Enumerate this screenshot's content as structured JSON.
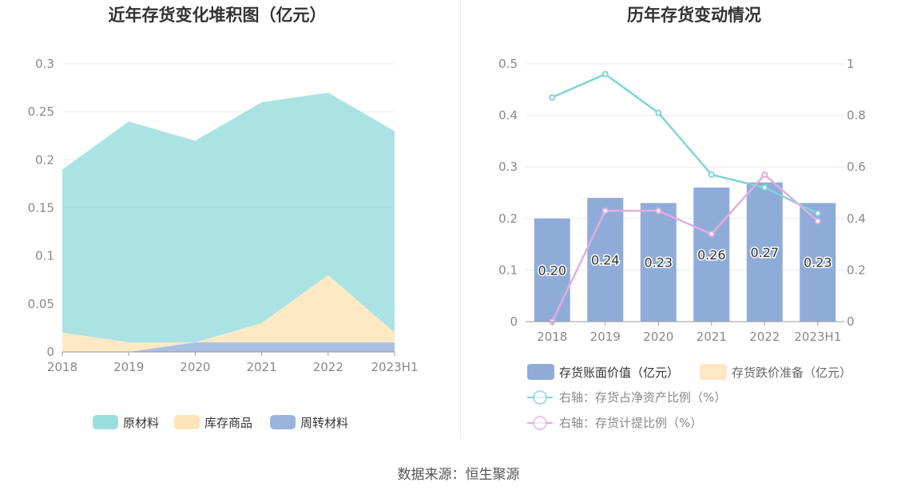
{
  "colors": {
    "raw": "#8fd9db",
    "goods": "#fde2b0",
    "turnover": "#8facd9",
    "bar": "#8facd9",
    "reserve": "#fde7c4",
    "line_net": "#7fd3d6",
    "line_prov": "#e2aee0",
    "grid": "#e6e9f2",
    "axis_text": "#888888",
    "title": "#333333"
  },
  "footer": {
    "source": "数据来源：恒生聚源"
  },
  "chart_data": [
    {
      "type": "area",
      "title": "近年存货变化堆积图（亿元）",
      "categories": [
        "2018",
        "2019",
        "2020",
        "2021",
        "2022",
        "2023H1"
      ],
      "y_ticks": [
        "0",
        "0.05",
        "0.1",
        "0.15",
        "0.2",
        "0.25",
        "0.3"
      ],
      "ylim": [
        0,
        0.3
      ],
      "stacked": true,
      "grid": true,
      "legend_position": "bottom",
      "series": [
        {
          "name": "周转材料",
          "values": [
            0,
            0,
            0.01,
            0.01,
            0.01,
            0.01
          ]
        },
        {
          "name": "库存商品",
          "values": [
            0.02,
            0.01,
            0,
            0.02,
            0.07,
            0.01
          ]
        },
        {
          "name": "原材料",
          "values": [
            0.17,
            0.23,
            0.21,
            0.23,
            0.19,
            0.21
          ]
        }
      ],
      "legend_order": [
        "原材料",
        "库存商品",
        "周转材料"
      ]
    },
    {
      "type": "bar",
      "title": "历年存货变动情况",
      "categories": [
        "2018",
        "2019",
        "2020",
        "2021",
        "2022",
        "2023H1"
      ],
      "y_ticks_left": [
        "0",
        "0.1",
        "0.2",
        "0.3",
        "0.4",
        "0.5"
      ],
      "y_ticks_right": [
        "0",
        "0.2",
        "0.4",
        "0.6",
        "0.8",
        "1"
      ],
      "ylim_left": [
        0,
        0.5
      ],
      "ylim_right": [
        0,
        1
      ],
      "grid": true,
      "legend_position": "bottom",
      "bars": {
        "name": "存货账面价值（亿元）",
        "values": [
          0.2,
          0.24,
          0.23,
          0.26,
          0.27,
          0.23
        ],
        "labels": [
          "0.20",
          "0.24",
          "0.23",
          "0.26",
          "0.27",
          "0.23"
        ]
      },
      "reserve": {
        "name": "存货跌价准备（亿元）",
        "values": [
          0,
          0,
          0,
          0,
          0,
          0
        ]
      },
      "lines": [
        {
          "name": "右轴：存货占净资产比例（%）",
          "values": [
            0.87,
            0.96,
            0.81,
            0.57,
            0.52,
            0.42
          ]
        },
        {
          "name": "右轴：存货计提比例（%）",
          "values": [
            0,
            0.43,
            0.43,
            0.34,
            0.57,
            0.39
          ]
        }
      ]
    }
  ]
}
